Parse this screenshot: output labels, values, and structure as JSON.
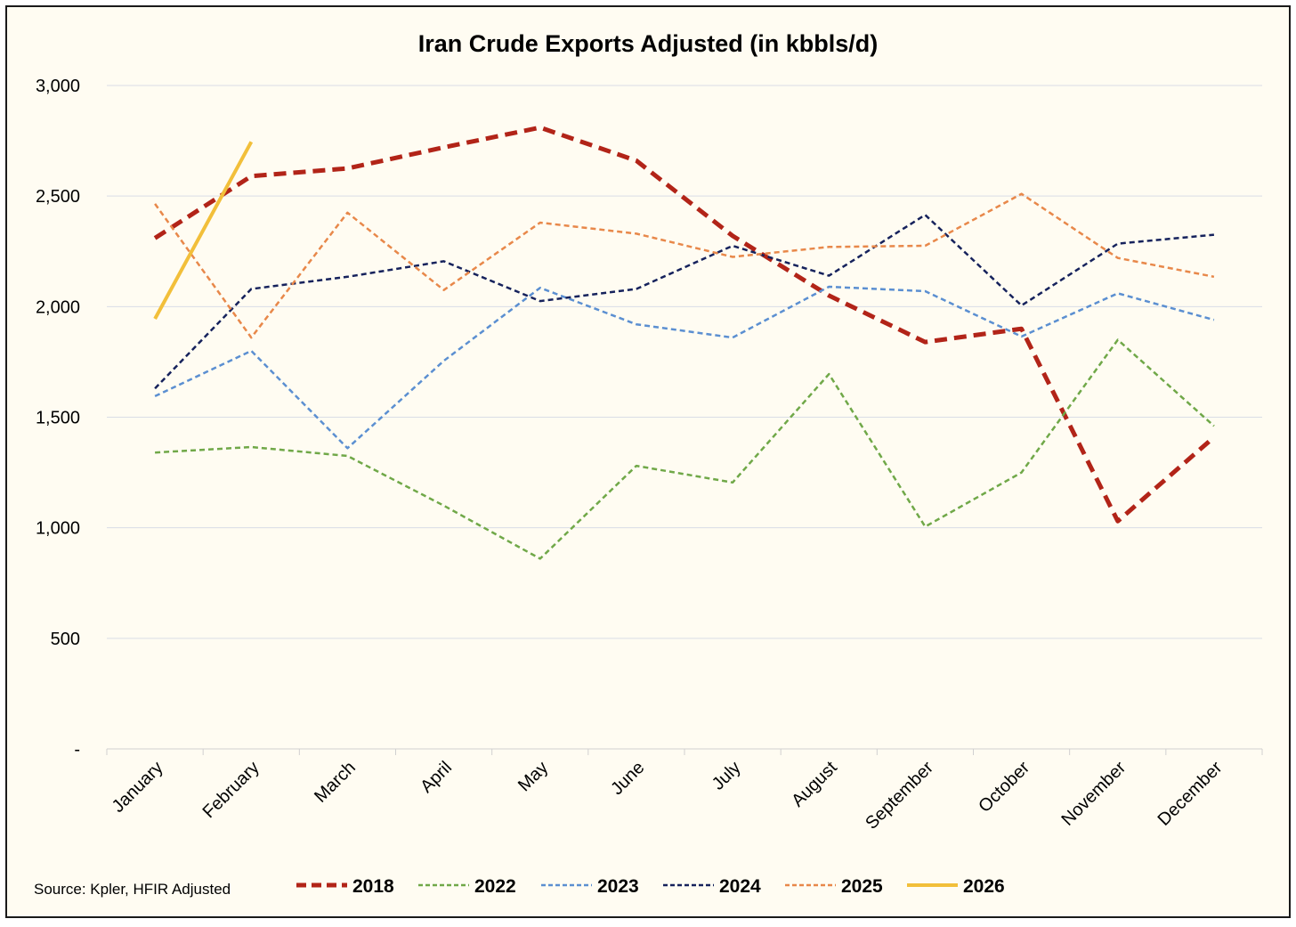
{
  "chart_data": {
    "type": "line",
    "title": "Iran Crude Exports Adjusted (in kbbls/d)",
    "xlabel": "",
    "ylabel": "",
    "categories": [
      "January",
      "February",
      "March",
      "April",
      "May",
      "June",
      "July",
      "August",
      "September",
      "October",
      "November",
      "December"
    ],
    "ylim": [
      0,
      3000
    ],
    "yticks": [
      0,
      500,
      1000,
      1500,
      2000,
      2500,
      3000
    ],
    "ytick_labels": [
      "-",
      "500",
      "1,000",
      "1,500",
      "2,000",
      "2,500",
      "3,000"
    ],
    "grid": "horizontal",
    "legend_position": "bottom",
    "series": [
      {
        "name": "2018",
        "color": "#b22418",
        "style": "dashed-thick",
        "values": [
          2310,
          2590,
          2625,
          2720,
          2810,
          2660,
          2320,
          2050,
          1840,
          1900,
          1030,
          1410
        ]
      },
      {
        "name": "2022",
        "color": "#70a848",
        "style": "dashed",
        "values": [
          1340,
          1365,
          1325,
          1100,
          860,
          1280,
          1205,
          1695,
          1005,
          1250,
          1850,
          1460
        ]
      },
      {
        "name": "2023",
        "color": "#5b8fd1",
        "style": "dashed",
        "values": [
          1595,
          1800,
          1360,
          1755,
          2085,
          1920,
          1860,
          2090,
          2070,
          1865,
          2060,
          1940
        ]
      },
      {
        "name": "2024",
        "color": "#16225c",
        "style": "dashed",
        "values": [
          1630,
          2080,
          2135,
          2205,
          2025,
          2080,
          2275,
          2140,
          2415,
          2005,
          2285,
          2325
        ]
      },
      {
        "name": "2025",
        "color": "#e8884a",
        "style": "dashed",
        "values": [
          2465,
          1860,
          2425,
          2075,
          2380,
          2330,
          2225,
          2270,
          2275,
          2510,
          2220,
          2135
        ]
      },
      {
        "name": "2026",
        "color": "#f2bf3a",
        "style": "solid",
        "values": [
          1945,
          2745,
          null,
          null,
          null,
          null,
          null,
          null,
          null,
          null,
          null,
          null
        ]
      }
    ]
  },
  "source_note": "Source: Kpler, HFIR Adjusted"
}
